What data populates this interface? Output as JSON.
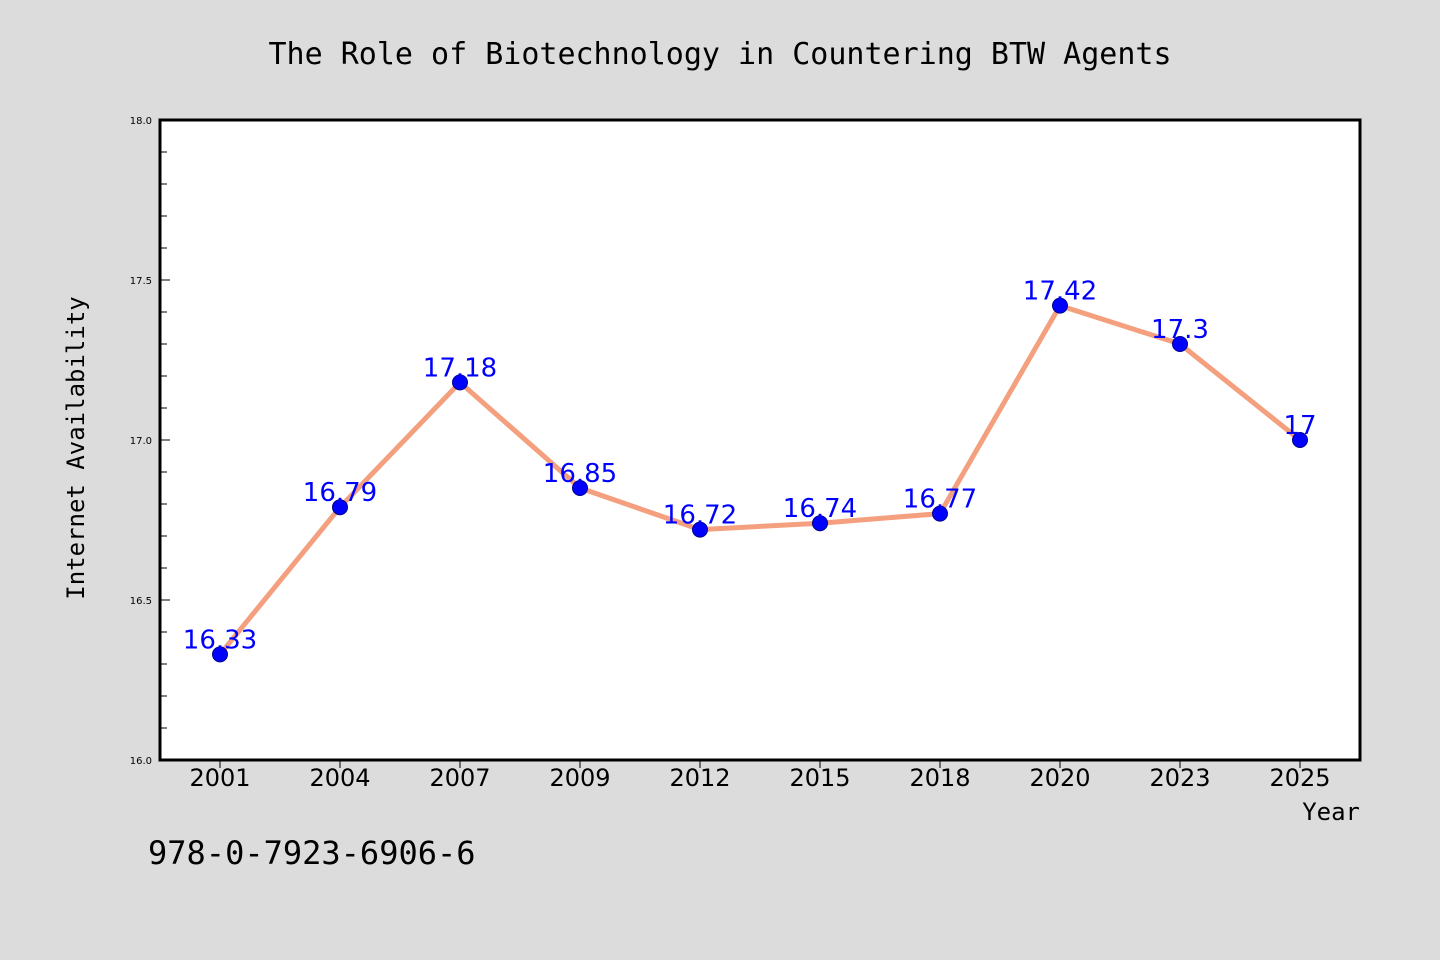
{
  "chart_data": {
    "type": "line",
    "title": "The Role of Biotechnology in Countering BTW Agents",
    "xlabel": "Year",
    "ylabel": "Internet Availability",
    "categories": [
      "2001",
      "2004",
      "2007",
      "2009",
      "2012",
      "2015",
      "2018",
      "2020",
      "2023",
      "2025"
    ],
    "values": [
      16.33,
      16.79,
      17.18,
      16.85,
      16.72,
      16.74,
      16.77,
      17.42,
      17.3,
      17
    ],
    "data_labels": [
      "16.33",
      "16.79",
      "17.18",
      "16.85",
      "16.72",
      "16.74",
      "16.77",
      "17.42",
      "17.3",
      "17"
    ],
    "ylim": [
      16.0,
      18.0
    ],
    "yticks": [
      "16.0",
      "16.5",
      "17.0",
      "17.5",
      "18.0"
    ],
    "grid": false,
    "line_color": "#f4a07e",
    "marker_color": "#0000ff",
    "label_color": "#0000ff"
  },
  "footer": {
    "isbn": "978-0-7923-6906-6"
  }
}
